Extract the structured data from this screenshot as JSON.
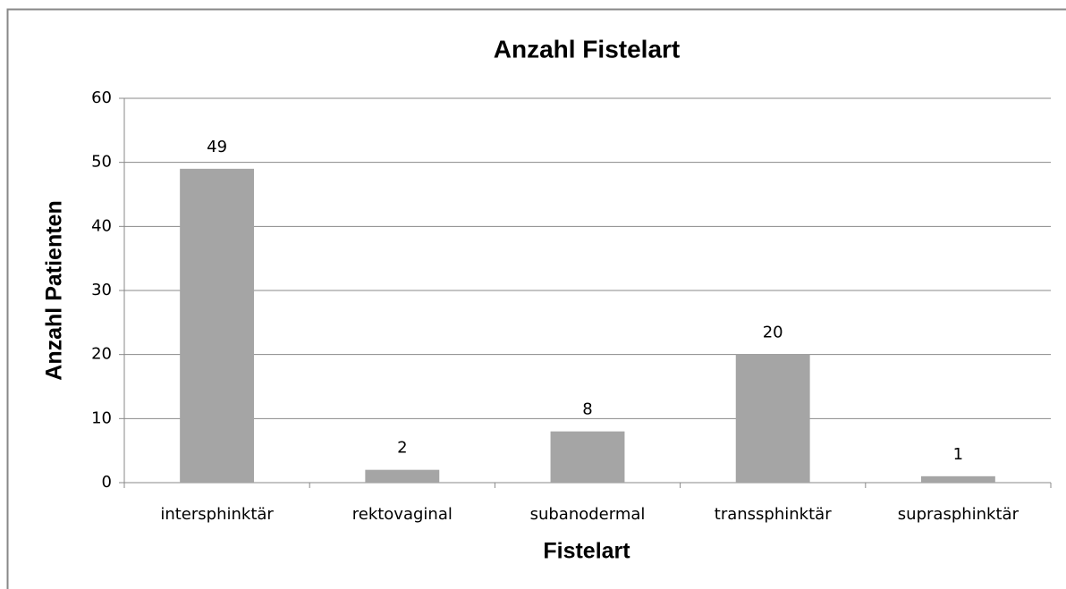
{
  "chart_data": {
    "type": "bar",
    "title": "Anzahl Fistelart",
    "x_label": "Fistelart",
    "y_label": "Anzahl Patienten",
    "categories": [
      "intersphinktär",
      "rektovaginal",
      "subanodermal",
      "transsphinktär",
      "suprasphinktär"
    ],
    "values": [
      49,
      2,
      8,
      20,
      1
    ],
    "color": "#a5a5a5",
    "ylim": [
      0,
      60
    ],
    "yticks": [
      0,
      10,
      20,
      30,
      40,
      50,
      60
    ],
    "grid": true
  }
}
